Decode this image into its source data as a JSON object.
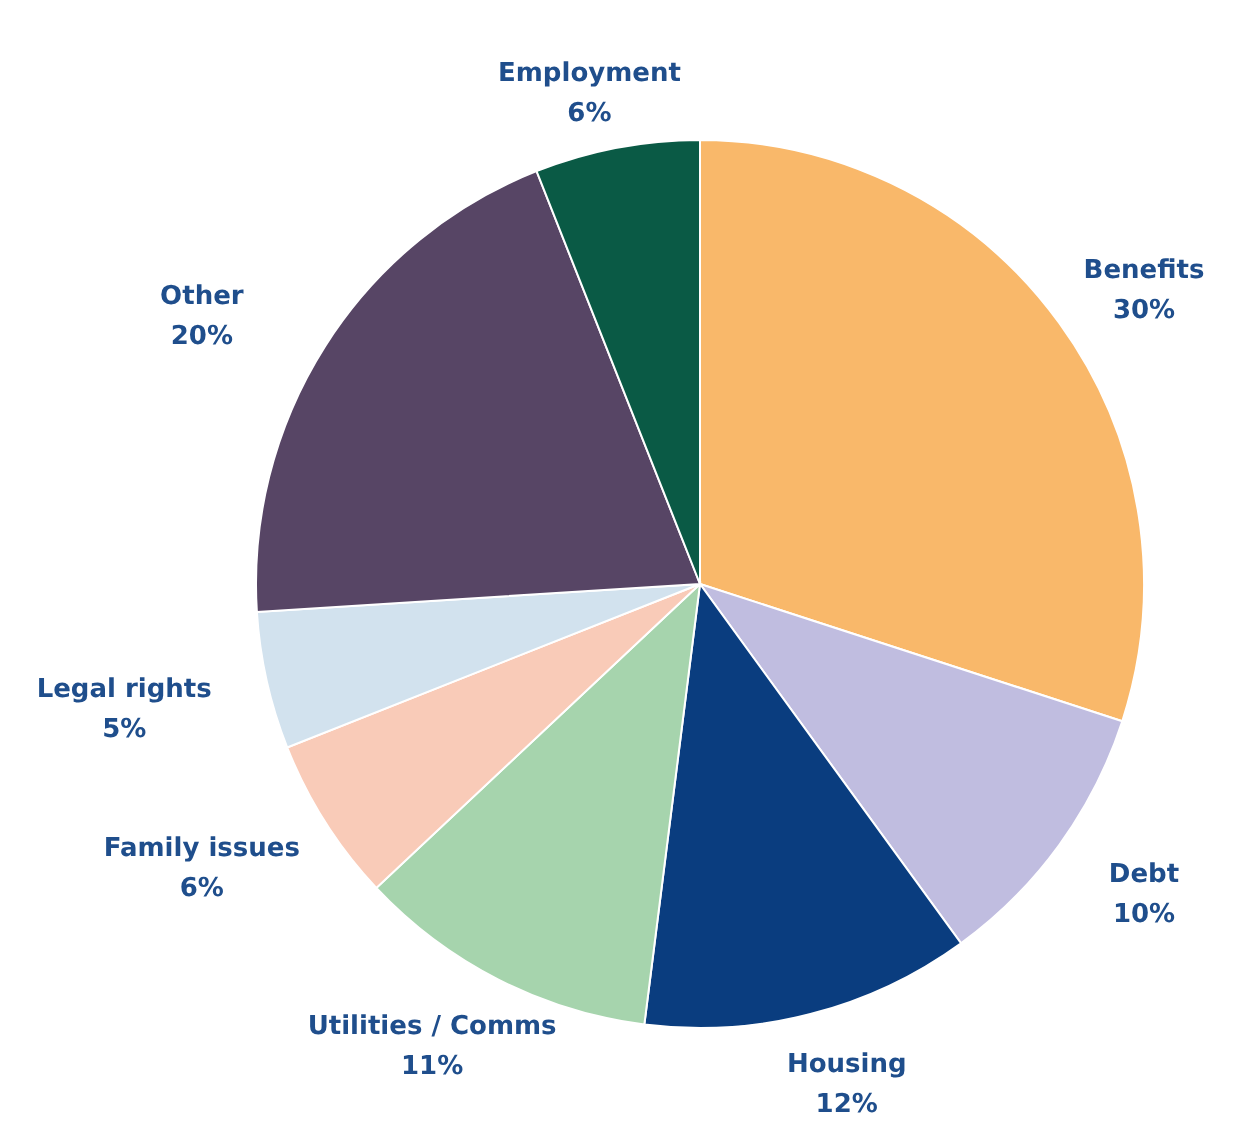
{
  "chart_data": {
    "type": "pie",
    "categories": [
      "Benefits",
      "Debt",
      "Housing",
      "Utilities / Comms",
      "Family issues",
      "Legal rights",
      "Other",
      "Employment"
    ],
    "values": [
      30,
      10,
      12,
      11,
      6,
      5,
      20,
      6
    ],
    "value_labels": [
      "30%",
      "10%",
      "12%",
      "11%",
      "6%",
      "5%",
      "20%",
      "6%"
    ],
    "colors": [
      "#f9b86a",
      "#c0bde0",
      "#0a3d7f",
      "#a6d4ad",
      "#f9cbb8",
      "#d2e2ee",
      "#574565",
      "#0a5a45"
    ]
  }
}
